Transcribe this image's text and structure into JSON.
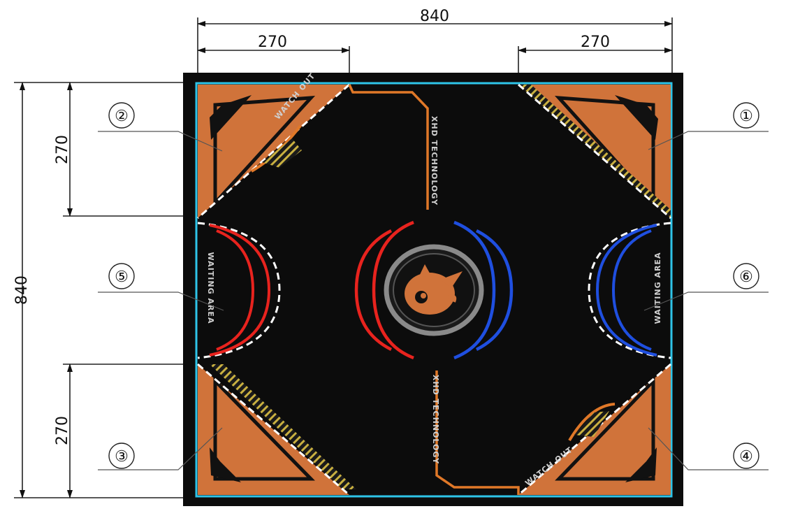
{
  "dimensions": {
    "top_total": "840",
    "top_left": "270",
    "top_right": "270",
    "side_total": "840",
    "side_top": "270",
    "side_bottom": "270"
  },
  "callouts": [
    "①",
    "②",
    "③",
    "④",
    "⑤",
    "⑥"
  ],
  "mat_text": {
    "watch_out": "WATCH OUT",
    "tech_top": "XHD TECHNOLOGY",
    "tech_bottom": "XHD TECHNOLOGY",
    "waiting_left": "WAITING AREA",
    "waiting_right": "WAITING AREA"
  },
  "colors": {
    "mat": "#0c0c0c",
    "border": "#2ec4e8",
    "corner": "#d0733a",
    "red": "#e8231e",
    "blue": "#1f4fe0",
    "hatch": "#c9b040"
  }
}
